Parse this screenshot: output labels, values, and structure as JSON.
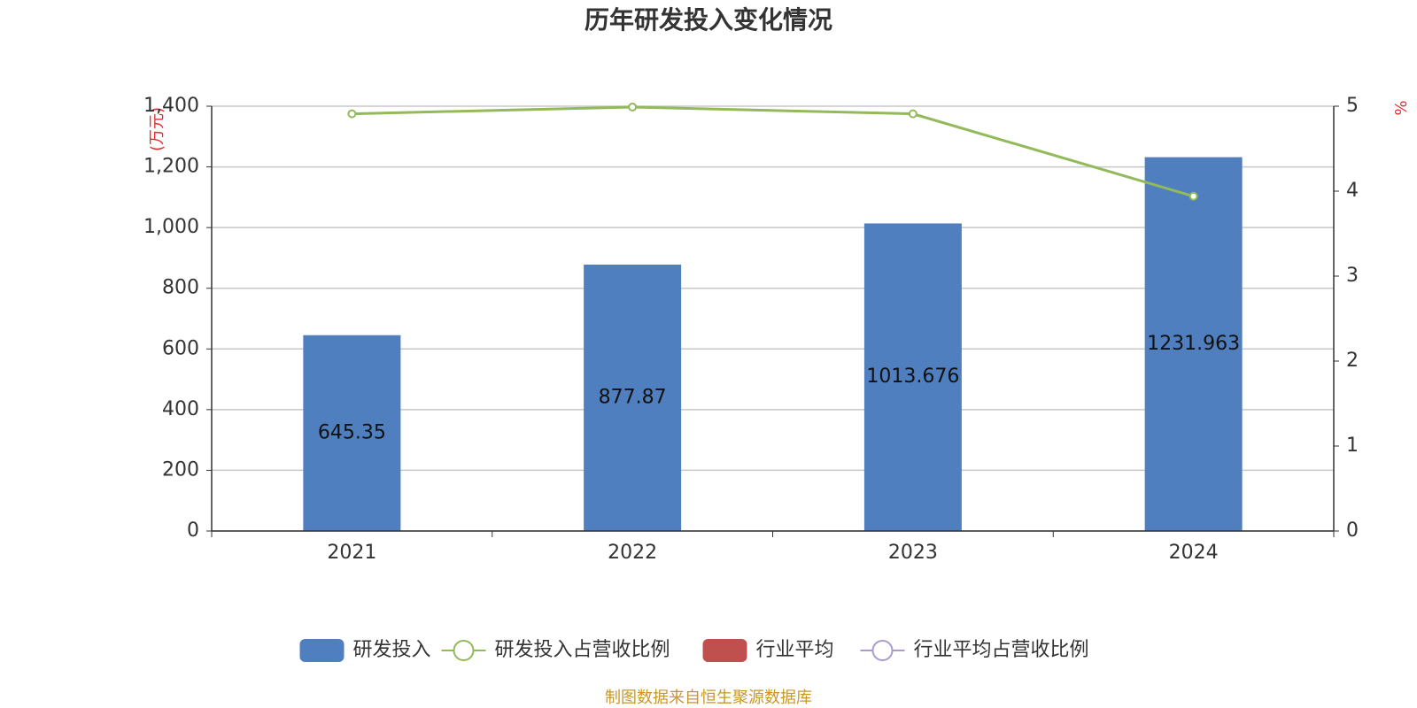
{
  "chart_data": {
    "type": "bar",
    "title": "历年研发投入变化情况",
    "ylabel": "(万元)",
    "y2label": "%",
    "categories": [
      "2021",
      "2022",
      "2023",
      "2024"
    ],
    "series": [
      {
        "name": "研发投入",
        "type": "bar",
        "axis": "y",
        "color": "#4f7fbe",
        "values": [
          645.35,
          877.87,
          1013.676,
          1231.963
        ]
      },
      {
        "name": "研发投入占营收比例",
        "type": "line",
        "axis": "y2",
        "color": "#92b95a",
        "values": [
          4.91,
          4.99,
          4.91,
          3.94
        ]
      },
      {
        "name": "行业平均",
        "type": "bar",
        "axis": "y",
        "color": "#c0504d",
        "values": [
          null,
          null,
          null,
          null
        ]
      },
      {
        "name": "行业平均占营收比例",
        "type": "line",
        "axis": "y2",
        "color": "#a99bd0",
        "values": [
          null,
          null,
          null,
          null
        ]
      }
    ],
    "ylim": [
      0,
      1400
    ],
    "yticks": [
      0,
      200,
      400,
      600,
      800,
      {
        "value": 1000,
        "label": "1,000"
      },
      {
        "value": 1200,
        "label": "1,200"
      },
      {
        "value": 1400,
        "label": "1,400"
      }
    ],
    "y2lim": [
      0,
      5
    ],
    "y2ticks": [
      0,
      1,
      2,
      3,
      4,
      5
    ],
    "grid": true,
    "legend": "bottom",
    "source": "制图数据来自恒生聚源数据库"
  }
}
